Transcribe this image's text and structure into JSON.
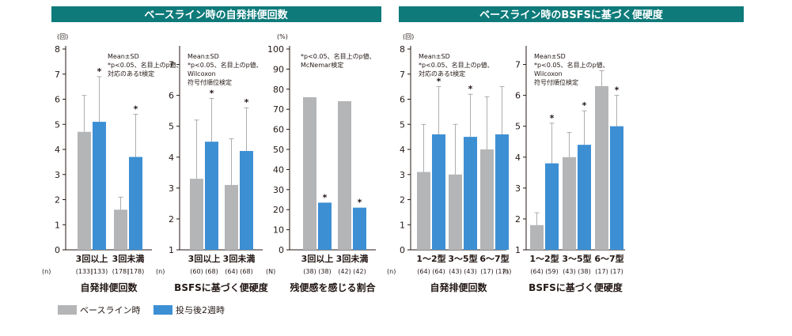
{
  "headers": [
    "ベースライン時の自発排便回数",
    "ベースライン時のBSFSに基づく便硬度"
  ],
  "legend": {
    "baseline": "ベースライン時",
    "week2": "投与後2週時"
  },
  "colors": {
    "baseline": "#b4b5b6",
    "week2": "#3d8fd3",
    "header_bg": "#0e7a7a",
    "axis": "#231815",
    "error": "#9a9a9a"
  },
  "chart_data": [
    {
      "type": "bar",
      "unit": "(回)",
      "ylim": [
        0,
        8
      ],
      "yticks": [
        "0",
        "1",
        "2",
        "3",
        "4",
        "5",
        "6",
        "7",
        "8"
      ],
      "note": [
        "Mean±SD",
        "*p<0.05、名目上のp値、",
        "対応のあるt検定"
      ],
      "categories": [
        "3回以上",
        "3回未満"
      ],
      "n_label": "(n)",
      "n": [
        [
          "(133)",
          "(133)"
        ],
        [
          "(178)",
          "(178)"
        ]
      ],
      "series": [
        {
          "values": [
            4.7,
            1.6
          ],
          "sd": [
            1.45,
            0.5
          ]
        },
        {
          "values": [
            5.1,
            3.7
          ],
          "sd": [
            1.8,
            1.7
          ]
        }
      ],
      "stars": [
        true,
        true
      ],
      "xlabel": "自発排便回数"
    },
    {
      "type": "bar",
      "unit": "",
      "ylim": [
        1,
        7.5
      ],
      "yticks": [
        "1",
        "2",
        "3",
        "4",
        "5",
        "6",
        "7"
      ],
      "note": [
        "Mean±SD",
        "*p<0.05、名目上のp値、",
        "Wilcoxon",
        "符号付順位検定"
      ],
      "categories": [
        "3回以上",
        "3回未満"
      ],
      "n_label": "(n)",
      "n": [
        [
          "(60)",
          "(68)"
        ],
        [
          "(64)",
          "(68)"
        ]
      ],
      "series": [
        {
          "values": [
            3.3,
            3.1
          ],
          "sd": [
            1.9,
            1.5
          ]
        },
        {
          "values": [
            4.5,
            4.2
          ],
          "sd": [
            1.4,
            1.4
          ]
        }
      ],
      "stars": [
        true,
        true
      ],
      "xlabel": "BSFSに基づく便硬度"
    },
    {
      "type": "bar",
      "unit": "(%)",
      "ylim": [
        0,
        100
      ],
      "yticks": [
        "0",
        "10",
        "20",
        "30",
        "40",
        "50",
        "60",
        "70",
        "80",
        "90",
        "100"
      ],
      "note": [
        "*p<0.05、名目上のp値、",
        "McNemar検定"
      ],
      "categories": [
        "3回以上",
        "3回未満"
      ],
      "n_label": "(N)",
      "n": [
        [
          "(38)",
          "(38)"
        ],
        [
          "(42)",
          "(42)"
        ]
      ],
      "series": [
        {
          "values": [
            76,
            74
          ],
          "sd": null
        },
        {
          "values": [
            23.5,
            21
          ],
          "sd": null
        }
      ],
      "stars": [
        true,
        true
      ],
      "xlabel": "残便感を感じる割合"
    },
    {
      "type": "bar",
      "unit": "(回)",
      "ylim": [
        0,
        8
      ],
      "yticks": [
        "0",
        "1",
        "2",
        "3",
        "4",
        "5",
        "6",
        "7",
        "8"
      ],
      "note": [
        "Mean±SD",
        "*p<0.05、名目上のp値、",
        "対応のあるt検定"
      ],
      "categories": [
        "1～2型",
        "3～5型",
        "6～7型"
      ],
      "n_label": "(n)",
      "n": [
        [
          "(64)",
          "(64)"
        ],
        [
          "(43)",
          "(43)"
        ],
        [
          "(17)",
          "(17)"
        ]
      ],
      "series": [
        {
          "values": [
            3.1,
            3.0,
            4.0
          ],
          "sd": [
            1.9,
            2.0,
            2.1
          ]
        },
        {
          "values": [
            4.6,
            4.5,
            4.6
          ],
          "sd": [
            1.9,
            1.7,
            1.9
          ]
        }
      ],
      "stars": [
        true,
        true,
        false
      ],
      "xlabel": "自発排便回数"
    },
    {
      "type": "bar",
      "unit": "",
      "ylim": [
        1,
        7.5
      ],
      "yticks": [
        "1",
        "2",
        "3",
        "4",
        "5",
        "6",
        "7"
      ],
      "note": [
        "Mean±SD",
        "*p<0.05、名目上のp値、",
        "Wilcoxon",
        "符号付順位検定"
      ],
      "categories": [
        "1～2型",
        "3～5型",
        "6～7型"
      ],
      "n_label": "(n)",
      "n": [
        [
          "(64)",
          "(59)"
        ],
        [
          "(43)",
          "(38)"
        ],
        [
          "(17)",
          "(17)"
        ]
      ],
      "series": [
        {
          "values": [
            1.8,
            4.0,
            6.3
          ],
          "sd": [
            0.4,
            0.8,
            0.5
          ]
        },
        {
          "values": [
            3.8,
            4.4,
            5.0
          ],
          "sd": [
            1.3,
            1.1,
            1.0
          ]
        }
      ],
      "stars": [
        true,
        true,
        true
      ],
      "xlabel": "BSFSに基づく便硬度"
    }
  ]
}
